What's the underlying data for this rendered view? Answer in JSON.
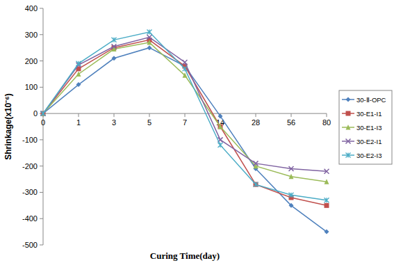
{
  "chart_data": {
    "type": "line",
    "x_label": "Curing Time(day)",
    "y_label": "Shrinkage(x10⁻⁶)",
    "categories": [
      "0",
      "1",
      "3",
      "5",
      "7",
      "14",
      "28",
      "56",
      "80"
    ],
    "series": [
      {
        "name": "30-Ⅱ-OPC",
        "color": "#4f81bd",
        "marker": "diamond",
        "values": [
          0,
          110,
          210,
          250,
          180,
          -10,
          -210,
          -350,
          -450
        ]
      },
      {
        "name": "30-E1-I1",
        "color": "#c0504d",
        "marker": "square",
        "values": [
          0,
          170,
          250,
          280,
          180,
          -50,
          -270,
          -320,
          -350
        ]
      },
      {
        "name": "30-E1-I3",
        "color": "#9bbb59",
        "marker": "triangle",
        "values": [
          0,
          150,
          245,
          270,
          145,
          -50,
          -200,
          -240,
          -260
        ]
      },
      {
        "name": "30-E2-I1",
        "color": "#8064a2",
        "marker": "x",
        "values": [
          0,
          185,
          255,
          290,
          195,
          -100,
          -190,
          -210,
          -220
        ]
      },
      {
        "name": "30-E2-I3",
        "color": "#4bacc6",
        "marker": "star",
        "values": [
          0,
          190,
          280,
          310,
          170,
          -120,
          -270,
          -310,
          -330
        ]
      }
    ],
    "ylim": [
      -500,
      400
    ],
    "yticks": [
      -500,
      -400,
      -300,
      -200,
      -100,
      0,
      100,
      200,
      300,
      400
    ],
    "grid": false,
    "legend": "right"
  }
}
